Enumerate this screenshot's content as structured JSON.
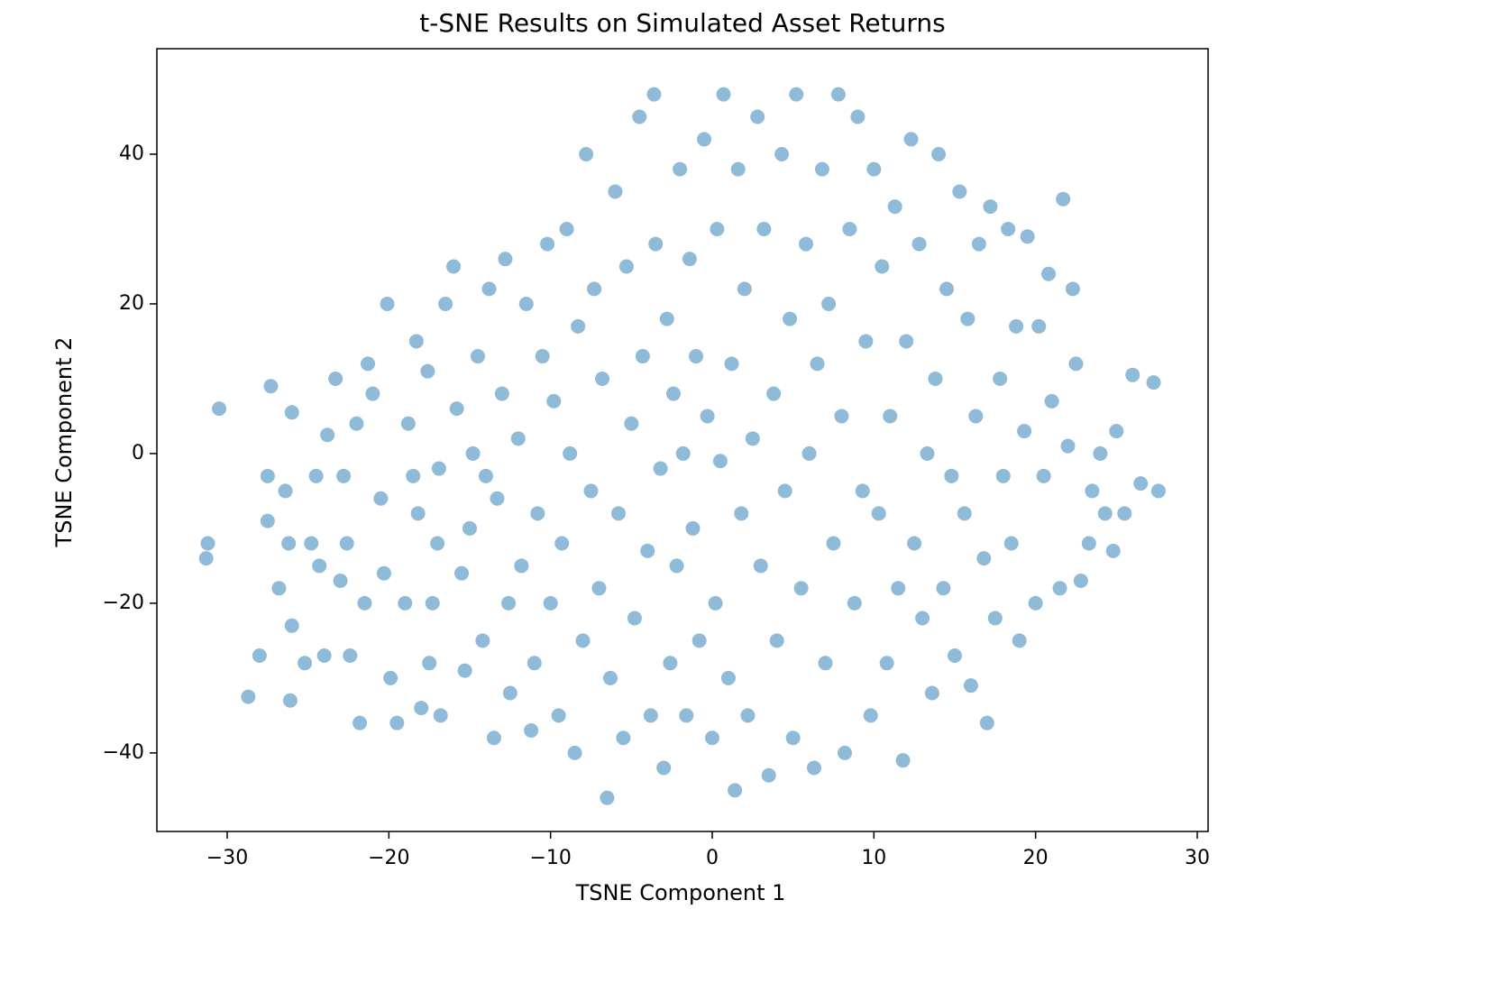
{
  "chart_data": {
    "type": "scatter",
    "title": "t-SNE Results on Simulated Asset Returns",
    "xlabel": "TSNE Component 1",
    "ylabel": "TSNE Component 2",
    "color": "#1f77b4",
    "alpha": 0.5,
    "xlim": [
      -34.35,
      30.67
    ],
    "ylim": [
      -50.5,
      54.1
    ],
    "xticks": [
      {
        "value": -30,
        "label": "−30"
      },
      {
        "value": -20,
        "label": "−20"
      },
      {
        "value": -10,
        "label": "−10"
      },
      0,
      10,
      20,
      30
    ],
    "yticks": [
      {
        "value": -40,
        "label": "−40"
      },
      {
        "value": -20,
        "label": "−20"
      },
      0,
      20,
      40
    ],
    "x": [
      -30.5,
      -31.3,
      -31.2,
      -28.7,
      -28,
      -27.5,
      -27.3,
      -27.5,
      -26.8,
      -26.4,
      -26,
      -26.2,
      -26,
      -26.1,
      -25.2,
      -24.8,
      -24.5,
      -24.3,
      -24,
      -23.8,
      -23.3,
      -23,
      -22.8,
      -22.6,
      -22.4,
      -22,
      -21.8,
      -21.5,
      -21.3,
      -21,
      -20.5,
      -20.3,
      -20.1,
      -19.9,
      -19.5,
      -19,
      -18.8,
      -18.5,
      -18.3,
      -18.2,
      -18,
      -17.6,
      -17.5,
      -17.3,
      -17,
      -16.9,
      -16.8,
      -16.5,
      -16,
      -15.8,
      -15.5,
      -15.3,
      -15,
      -14.8,
      -14.5,
      -14.2,
      -14,
      -13.8,
      -13.5,
      -13.3,
      -13,
      -12.8,
      -12.6,
      -12.5,
      -12,
      -11.8,
      -11.5,
      -11.2,
      -11,
      -10.8,
      -10.5,
      -10.2,
      -10,
      -9.8,
      -9.5,
      -9.3,
      -9,
      -8.8,
      -8.5,
      -8.3,
      -8,
      -7.8,
      -7.5,
      -7.3,
      -7,
      -6.8,
      -6.5,
      -6.3,
      -6,
      -5.8,
      -5.5,
      -5.3,
      -5,
      -4.8,
      -4.5,
      -4.3,
      -4,
      -3.8,
      -3.6,
      -3.5,
      -3.2,
      -3,
      -2.8,
      -2.6,
      -2.4,
      -2.2,
      -2,
      -1.8,
      -1.6,
      -1.4,
      -1.2,
      -1,
      -0.8,
      -0.5,
      -0.3,
      0,
      0.2,
      0.3,
      0.5,
      0.7,
      1,
      1.2,
      1.4,
      1.6,
      1.8,
      2,
      2.2,
      2.5,
      2.8,
      3,
      3.2,
      3.5,
      3.8,
      4,
      4.3,
      4.5,
      4.8,
      5,
      5.2,
      5.5,
      5.8,
      6,
      6.3,
      6.5,
      6.8,
      7,
      7.2,
      7.5,
      7.8,
      8,
      8.2,
      8.5,
      8.8,
      9,
      9.3,
      9.5,
      9.8,
      10,
      10.3,
      10.5,
      10.8,
      11,
      11.3,
      11.5,
      11.8,
      12,
      12.3,
      12.5,
      12.8,
      13,
      13.3,
      13.6,
      13.8,
      14,
      14.3,
      14.5,
      14.8,
      15,
      15.3,
      15.6,
      15.8,
      16,
      16.3,
      16.5,
      16.8,
      17,
      17.2,
      17.5,
      17.8,
      18,
      18.3,
      18.5,
      18.8,
      19,
      19.3,
      19.5,
      20,
      20.2,
      20.5,
      20.8,
      21,
      21.5,
      21.7,
      22,
      22.3,
      22.5,
      22.8,
      23.3,
      23.5,
      24,
      24.3,
      24.8,
      25,
      25.5,
      26,
      26.5,
      27.3,
      27.6
    ],
    "values": [
      6,
      -14,
      -12,
      -32.5,
      -27,
      -9,
      9,
      -3,
      -18,
      -5,
      5.5,
      -12,
      -23,
      -33,
      -28,
      -12,
      -3,
      -15,
      -27,
      2.5,
      10,
      -17,
      -3,
      -12,
      -27,
      4,
      -36,
      -20,
      12,
      8,
      -6,
      -16,
      20,
      -30,
      -36,
      -20,
      4,
      -3,
      15,
      -8,
      -34,
      11,
      -28,
      -20,
      -12,
      -2,
      -35,
      20,
      25,
      6,
      -16,
      -29,
      -10,
      0,
      13,
      -25,
      -3,
      22,
      -38,
      -6,
      8,
      26,
      -20,
      -32,
      2,
      -15,
      20,
      -37,
      -28,
      -8,
      13,
      28,
      -20,
      7,
      -35,
      -12,
      30,
      0,
      -40,
      17,
      -25,
      40,
      -5,
      22,
      -18,
      10,
      -46,
      -30,
      35,
      -8,
      -38,
      25,
      4,
      -22,
      45,
      13,
      -13,
      -35,
      48,
      28,
      -2,
      -42,
      18,
      -28,
      8,
      -15,
      38,
      0,
      -35,
      26,
      -10,
      13,
      -25,
      42,
      5,
      -38,
      -20,
      30,
      -1,
      48,
      -30,
      12,
      -45,
      38,
      -8,
      22,
      -35,
      2,
      45,
      -15,
      30,
      -43,
      8,
      -25,
      40,
      -5,
      18,
      -38,
      48,
      -18,
      28,
      0,
      -42,
      12,
      38,
      -28,
      20,
      -12,
      48,
      5,
      -40,
      30,
      -20,
      45,
      -5,
      15,
      -35,
      38,
      -8,
      25,
      -28,
      5,
      33,
      -18,
      -41,
      15,
      42,
      -12,
      28,
      -22,
      0,
      -32,
      10,
      40,
      -18,
      22,
      -3,
      -27,
      35,
      -8,
      18,
      -31,
      5,
      28,
      -14,
      -36,
      33,
      -22,
      10,
      -3,
      30,
      -12,
      17,
      -25,
      3,
      29,
      -20,
      17,
      -3,
      24,
      7,
      -18,
      34,
      1,
      22,
      12,
      -17,
      -12,
      -5,
      0,
      -8,
      -13,
      3,
      -8,
      10.5,
      -4,
      9.5,
      -5
    ]
  }
}
